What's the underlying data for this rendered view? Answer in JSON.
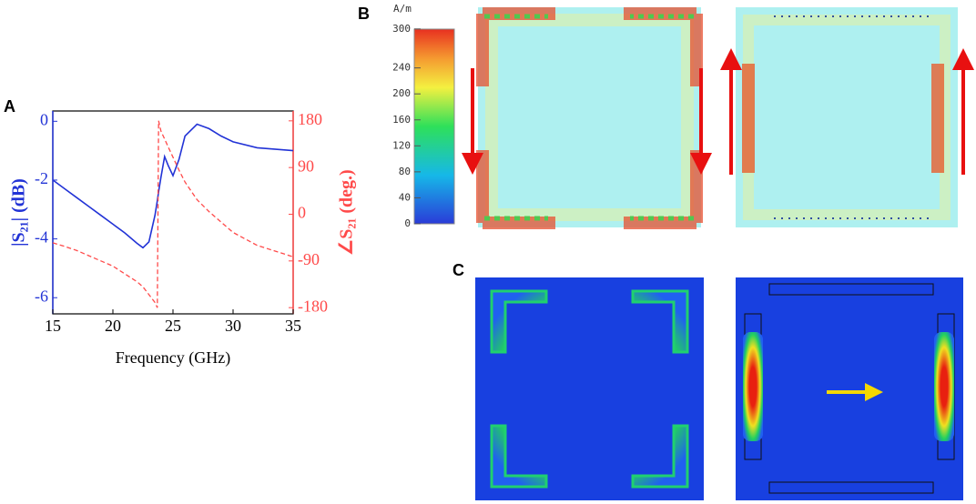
{
  "chart_data": {
    "type": "line",
    "panel": "A",
    "xlabel": "Frequency (GHz)",
    "ylabel": "|S₂₁| (dB)",
    "y2label": "∠S₂₁ (deg.)",
    "x": [
      15,
      16,
      17,
      18,
      19,
      20,
      21,
      22,
      22.5,
      23,
      23.5,
      23.7,
      23.8,
      24,
      24.3,
      24.6,
      25,
      25.5,
      26,
      27,
      28,
      29,
      30,
      32,
      35
    ],
    "series": [
      {
        "name": "|S21|",
        "color": "#2233d6",
        "dash": false,
        "values": [
          -2.0,
          -2.3,
          -2.6,
          -2.9,
          -3.2,
          -3.5,
          -3.8,
          -4.15,
          -4.3,
          -4.1,
          -3.2,
          -2.7,
          -2.4,
          -1.9,
          -1.2,
          -1.5,
          -1.85,
          -1.3,
          -0.5,
          -0.1,
          -0.25,
          -0.5,
          -0.7,
          -0.9,
          -1.0
        ]
      },
      {
        "name": "∠S21",
        "color": "#ff4a4a",
        "dash": true,
        "axis": "y2",
        "values": [
          -55,
          -62,
          -70,
          -80,
          -90,
          -100,
          -115,
          -130,
          -140,
          -155,
          -170,
          -180,
          180,
          160,
          145,
          130,
          110,
          85,
          62,
          28,
          5,
          -15,
          -35,
          -60,
          -82
        ]
      }
    ],
    "xlim": [
      15,
      35
    ],
    "xticks": [
      15,
      20,
      25,
      30,
      35
    ],
    "ylim": [
      -6.55,
      0.35
    ],
    "yticks": [
      0,
      -2,
      -4,
      -6
    ],
    "y2lim": [
      -192,
      199
    ],
    "y2ticks": [
      180,
      90,
      0,
      -90,
      -180
    ]
  },
  "panels": {
    "b": "B",
    "c": "C"
  },
  "colorbar": {
    "unit": "A/m",
    "ticks": [
      300,
      240,
      200,
      160,
      120,
      80,
      40,
      0
    ]
  }
}
